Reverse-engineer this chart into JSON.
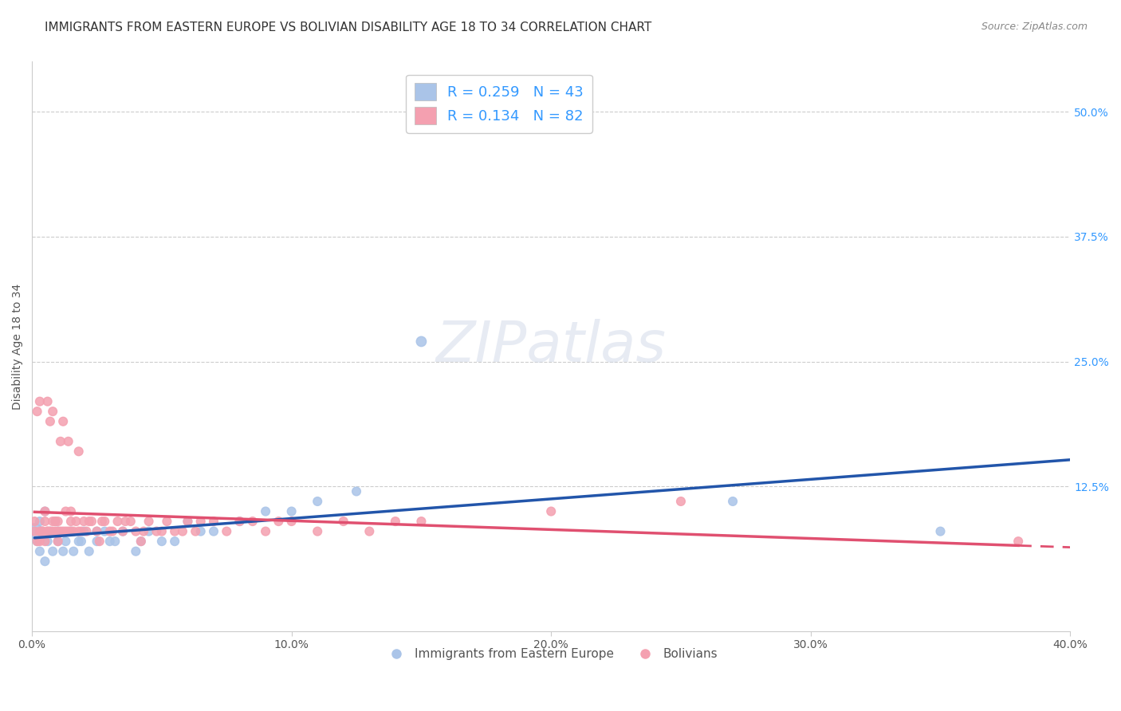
{
  "title": "IMMIGRANTS FROM EASTERN EUROPE VS BOLIVIAN DISABILITY AGE 18 TO 34 CORRELATION CHART",
  "source": "Source: ZipAtlas.com",
  "xlabel": "",
  "ylabel": "Disability Age 18 to 34",
  "xlim": [
    0.0,
    0.4
  ],
  "ylim": [
    -0.02,
    0.55
  ],
  "xtick_labels": [
    "0.0%",
    "10.0%",
    "20.0%",
    "30.0%",
    "40.0%"
  ],
  "xtick_vals": [
    0.0,
    0.1,
    0.2,
    0.3,
    0.4
  ],
  "ytick_labels": [
    "50.0%",
    "37.5%",
    "25.0%",
    "12.5%"
  ],
  "ytick_vals": [
    0.5,
    0.375,
    0.25,
    0.125
  ],
  "grid_color": "#cccccc",
  "background": "#ffffff",
  "series1": {
    "label": "Immigrants from Eastern Europe",
    "R": 0.259,
    "N": 43,
    "color_scatter": "#aac4e8",
    "color_line": "#2255aa",
    "x": [
      0.001,
      0.002,
      0.003,
      0.003,
      0.004,
      0.005,
      0.005,
      0.006,
      0.007,
      0.008,
      0.009,
      0.01,
      0.01,
      0.012,
      0.013,
      0.015,
      0.016,
      0.018,
      0.019,
      0.02,
      0.022,
      0.025,
      0.025,
      0.028,
      0.03,
      0.032,
      0.035,
      0.04,
      0.042,
      0.045,
      0.05,
      0.055,
      0.06,
      0.065,
      0.07,
      0.08,
      0.09,
      0.1,
      0.11,
      0.125,
      0.15,
      0.27,
      0.35
    ],
    "y": [
      0.08,
      0.07,
      0.06,
      0.09,
      0.08,
      0.05,
      0.1,
      0.07,
      0.08,
      0.06,
      0.09,
      0.07,
      0.08,
      0.06,
      0.07,
      0.08,
      0.06,
      0.07,
      0.07,
      0.08,
      0.06,
      0.07,
      0.08,
      0.08,
      0.07,
      0.07,
      0.08,
      0.06,
      0.07,
      0.08,
      0.07,
      0.07,
      0.09,
      0.08,
      0.08,
      0.09,
      0.1,
      0.1,
      0.11,
      0.12,
      0.27,
      0.11,
      0.08
    ],
    "sizes": [
      200,
      60,
      60,
      60,
      60,
      60,
      60,
      60,
      60,
      60,
      60,
      60,
      60,
      60,
      60,
      60,
      60,
      60,
      60,
      60,
      60,
      60,
      60,
      60,
      60,
      60,
      60,
      60,
      60,
      60,
      60,
      60,
      60,
      60,
      60,
      60,
      60,
      60,
      60,
      60,
      80,
      60,
      60
    ]
  },
  "series2": {
    "label": "Bolivians",
    "R": 0.134,
    "N": 82,
    "color_scatter": "#f4a0b0",
    "color_line": "#e05070",
    "x": [
      0.001,
      0.001,
      0.002,
      0.002,
      0.003,
      0.003,
      0.003,
      0.004,
      0.004,
      0.005,
      0.005,
      0.005,
      0.006,
      0.006,
      0.006,
      0.007,
      0.007,
      0.008,
      0.008,
      0.008,
      0.009,
      0.009,
      0.01,
      0.01,
      0.01,
      0.011,
      0.011,
      0.012,
      0.012,
      0.013,
      0.013,
      0.014,
      0.014,
      0.015,
      0.015,
      0.015,
      0.016,
      0.017,
      0.018,
      0.018,
      0.019,
      0.02,
      0.021,
      0.022,
      0.023,
      0.025,
      0.026,
      0.027,
      0.028,
      0.03,
      0.031,
      0.033,
      0.035,
      0.036,
      0.038,
      0.04,
      0.042,
      0.043,
      0.045,
      0.048,
      0.05,
      0.052,
      0.055,
      0.058,
      0.06,
      0.063,
      0.065,
      0.07,
      0.075,
      0.08,
      0.085,
      0.09,
      0.095,
      0.1,
      0.11,
      0.12,
      0.13,
      0.14,
      0.15,
      0.2,
      0.25,
      0.38
    ],
    "y": [
      0.08,
      0.09,
      0.2,
      0.07,
      0.07,
      0.08,
      0.21,
      0.08,
      0.08,
      0.07,
      0.09,
      0.1,
      0.08,
      0.08,
      0.21,
      0.08,
      0.19,
      0.08,
      0.09,
      0.2,
      0.08,
      0.09,
      0.07,
      0.08,
      0.09,
      0.08,
      0.17,
      0.08,
      0.19,
      0.08,
      0.1,
      0.08,
      0.17,
      0.08,
      0.09,
      0.1,
      0.08,
      0.09,
      0.08,
      0.16,
      0.08,
      0.09,
      0.08,
      0.09,
      0.09,
      0.08,
      0.07,
      0.09,
      0.09,
      0.08,
      0.08,
      0.09,
      0.08,
      0.09,
      0.09,
      0.08,
      0.07,
      0.08,
      0.09,
      0.08,
      0.08,
      0.09,
      0.08,
      0.08,
      0.09,
      0.08,
      0.09,
      0.09,
      0.08,
      0.09,
      0.09,
      0.08,
      0.09,
      0.09,
      0.08,
      0.09,
      0.08,
      0.09,
      0.09,
      0.1,
      0.11,
      0.07
    ],
    "sizes": [
      60,
      60,
      60,
      60,
      60,
      60,
      60,
      60,
      60,
      60,
      60,
      60,
      60,
      60,
      60,
      60,
      60,
      60,
      60,
      60,
      60,
      60,
      60,
      60,
      60,
      60,
      60,
      60,
      60,
      60,
      60,
      60,
      60,
      60,
      60,
      60,
      60,
      60,
      60,
      60,
      60,
      60,
      60,
      60,
      60,
      60,
      60,
      60,
      60,
      60,
      60,
      60,
      60,
      60,
      60,
      60,
      60,
      60,
      60,
      60,
      60,
      60,
      60,
      60,
      60,
      60,
      60,
      60,
      60,
      60,
      60,
      60,
      60,
      60,
      60,
      60,
      60,
      60,
      60,
      60,
      60,
      60
    ]
  },
  "legend_R1": "0.259",
  "legend_N1": "43",
  "legend_R2": "0.134",
  "legend_N2": "82",
  "accent_color": "#3399ff",
  "title_fontsize": 11,
  "axis_label_fontsize": 10,
  "tick_fontsize": 10
}
